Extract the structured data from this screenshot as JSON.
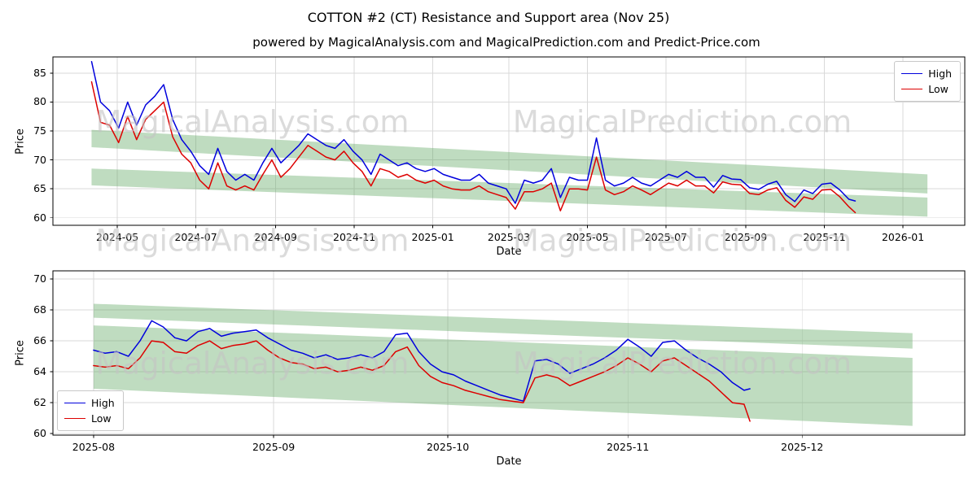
{
  "header": {
    "title": "COTTON #2 (CT) Resistance and Support area (Nov 25)",
    "subtitle": "powered by MagicalAnalysis.com and MagicalPrediction.com and Predict-Price.com"
  },
  "watermarks": {
    "texts": [
      "MagicalAnalysis.com",
      "MagicalPrediction.com"
    ]
  },
  "colors": {
    "high": "#0000dd",
    "low": "#dd0000",
    "band": "#5ea861",
    "grid": "#d9d9d9",
    "spine": "#000000",
    "watermark": "#c4c4c4"
  },
  "chart_data": [
    {
      "type": "line",
      "xlabel": "Date",
      "ylabel": "Price",
      "xlim": [
        "2024-03-12",
        "2026-02-18"
      ],
      "ylim": [
        58.7,
        87.8
      ],
      "x_ticks": [
        "2024-05",
        "2024-07",
        "2024-09",
        "2024-11",
        "2025-01",
        "2025-03",
        "2025-05",
        "2025-07",
        "2025-09",
        "2025-11",
        "2026-01"
      ],
      "y_ticks": [
        60,
        65,
        70,
        75,
        80,
        85
      ],
      "grid": true,
      "legend": {
        "position": "upper right"
      },
      "x": [
        "2024-04-11",
        "2024-04-18",
        "2024-04-25",
        "2024-05-02",
        "2024-05-09",
        "2024-05-16",
        "2024-05-23",
        "2024-05-30",
        "2024-06-06",
        "2024-06-13",
        "2024-06-20",
        "2024-06-27",
        "2024-07-04",
        "2024-07-11",
        "2024-07-18",
        "2024-07-25",
        "2024-08-01",
        "2024-08-08",
        "2024-08-15",
        "2024-08-22",
        "2024-08-29",
        "2024-09-05",
        "2024-09-12",
        "2024-09-19",
        "2024-09-26",
        "2024-10-03",
        "2024-10-10",
        "2024-10-17",
        "2024-10-24",
        "2024-10-31",
        "2024-11-07",
        "2024-11-14",
        "2024-11-21",
        "2024-11-28",
        "2024-12-05",
        "2024-12-12",
        "2024-12-19",
        "2024-12-26",
        "2025-01-02",
        "2025-01-09",
        "2025-01-16",
        "2025-01-23",
        "2025-01-30",
        "2025-02-06",
        "2025-02-13",
        "2025-02-20",
        "2025-02-27",
        "2025-03-06",
        "2025-03-13",
        "2025-03-20",
        "2025-03-27",
        "2025-04-03",
        "2025-04-10",
        "2025-04-17",
        "2025-04-24",
        "2025-05-01",
        "2025-05-08",
        "2025-05-15",
        "2025-05-22",
        "2025-05-29",
        "2025-06-05",
        "2025-06-12",
        "2025-06-19",
        "2025-06-26",
        "2025-07-03",
        "2025-07-10",
        "2025-07-17",
        "2025-07-24",
        "2025-07-31",
        "2025-08-07",
        "2025-08-14",
        "2025-08-21",
        "2025-08-28",
        "2025-09-04",
        "2025-09-11",
        "2025-09-18",
        "2025-09-25",
        "2025-10-02",
        "2025-10-09",
        "2025-10-16",
        "2025-10-23",
        "2025-10-30",
        "2025-11-06",
        "2025-11-13",
        "2025-11-20",
        "2025-11-25"
      ],
      "series": [
        {
          "name": "High",
          "color_key": "high",
          "values": [
            87.0,
            80.0,
            78.5,
            75.5,
            80.0,
            76.0,
            79.5,
            81.0,
            83.0,
            77.0,
            73.5,
            71.5,
            69.0,
            67.5,
            72.0,
            68.0,
            66.5,
            67.5,
            66.5,
            69.5,
            72.0,
            69.5,
            71.0,
            72.5,
            74.5,
            73.5,
            72.5,
            72.0,
            73.5,
            71.5,
            70.0,
            67.5,
            71.0,
            70.0,
            69.0,
            69.5,
            68.5,
            68.0,
            68.5,
            67.5,
            67.0,
            66.5,
            66.5,
            67.5,
            66.0,
            65.5,
            65.0,
            62.5,
            66.5,
            66.0,
            66.5,
            68.5,
            63.5,
            67.0,
            66.5,
            66.5,
            73.8,
            66.5,
            65.5,
            66.0,
            67.0,
            66.0,
            65.5,
            66.5,
            67.5,
            67.0,
            68.0,
            67.0,
            67.0,
            65.3,
            67.3,
            66.7,
            66.6,
            65.2,
            64.9,
            65.8,
            66.3,
            64.0,
            62.8,
            64.8,
            64.2,
            65.8,
            66.0,
            64.8,
            63.2,
            62.9
          ]
        },
        {
          "name": "Low",
          "color_key": "low",
          "values": [
            83.5,
            76.5,
            76.0,
            73.0,
            77.5,
            73.5,
            77.0,
            78.5,
            80.0,
            74.0,
            71.0,
            69.5,
            66.5,
            65.0,
            69.5,
            65.5,
            64.8,
            65.5,
            64.8,
            67.5,
            70.0,
            67.0,
            68.5,
            70.5,
            72.5,
            71.5,
            70.5,
            70.0,
            71.5,
            69.5,
            68.0,
            65.5,
            68.5,
            68.0,
            67.0,
            67.5,
            66.5,
            66.0,
            66.5,
            65.5,
            65.0,
            64.8,
            64.8,
            65.5,
            64.5,
            64.0,
            63.5,
            61.5,
            64.5,
            64.5,
            65.0,
            66.0,
            61.2,
            65.0,
            65.0,
            64.8,
            70.5,
            64.8,
            64.0,
            64.5,
            65.5,
            64.8,
            64.0,
            65.0,
            66.0,
            65.5,
            66.5,
            65.5,
            65.5,
            64.3,
            66.2,
            65.8,
            65.7,
            64.2,
            64.0,
            64.8,
            65.2,
            63.0,
            61.8,
            63.6,
            63.2,
            64.8,
            64.9,
            63.6,
            61.9,
            60.9
          ]
        }
      ],
      "bands": [
        {
          "name": "resistance-area",
          "x": [
            "2024-04-11",
            "2026-01-20"
          ],
          "top": [
            75.2,
            67.5
          ],
          "bottom": [
            72.2,
            64.2
          ]
        },
        {
          "name": "support-area",
          "x": [
            "2024-04-11",
            "2026-01-20"
          ],
          "top": [
            68.5,
            63.5
          ],
          "bottom": [
            65.6,
            60.2
          ]
        }
      ]
    },
    {
      "type": "line",
      "xlabel": "Date",
      "ylabel": "Price",
      "xlim": [
        "2025-07-25",
        "2025-12-29"
      ],
      "ylim": [
        59.9,
        70.53
      ],
      "x_ticks": [
        "2025-08",
        "2025-09",
        "2025-10",
        "2025-11",
        "2025-12"
      ],
      "y_ticks": [
        60,
        62,
        64,
        66,
        68,
        70
      ],
      "grid": true,
      "legend": {
        "position": "lower left"
      },
      "x": [
        "2025-08-01",
        "2025-08-03",
        "2025-08-05",
        "2025-08-07",
        "2025-08-09",
        "2025-08-11",
        "2025-08-13",
        "2025-08-15",
        "2025-08-17",
        "2025-08-19",
        "2025-08-21",
        "2025-08-23",
        "2025-08-25",
        "2025-08-27",
        "2025-08-29",
        "2025-08-31",
        "2025-09-02",
        "2025-09-04",
        "2025-09-06",
        "2025-09-08",
        "2025-09-10",
        "2025-09-12",
        "2025-09-14",
        "2025-09-16",
        "2025-09-18",
        "2025-09-20",
        "2025-09-22",
        "2025-09-24",
        "2025-09-26",
        "2025-09-28",
        "2025-09-30",
        "2025-10-02",
        "2025-10-04",
        "2025-10-06",
        "2025-10-08",
        "2025-10-10",
        "2025-10-12",
        "2025-10-14",
        "2025-10-16",
        "2025-10-18",
        "2025-10-20",
        "2025-10-22",
        "2025-10-24",
        "2025-10-26",
        "2025-10-28",
        "2025-10-30",
        "2025-11-01",
        "2025-11-03",
        "2025-11-05",
        "2025-11-07",
        "2025-11-09",
        "2025-11-11",
        "2025-11-13",
        "2025-11-15",
        "2025-11-17",
        "2025-11-19",
        "2025-11-21",
        "2025-11-22"
      ],
      "series": [
        {
          "name": "High",
          "color_key": "high",
          "values": [
            65.4,
            65.2,
            65.3,
            65.0,
            66.0,
            67.3,
            66.9,
            66.2,
            66.0,
            66.6,
            66.8,
            66.3,
            66.5,
            66.6,
            66.7,
            66.2,
            65.8,
            65.4,
            65.2,
            64.9,
            65.1,
            64.8,
            64.9,
            65.1,
            64.9,
            65.3,
            66.4,
            66.5,
            65.3,
            64.5,
            64.0,
            63.8,
            63.4,
            63.1,
            62.8,
            62.5,
            62.3,
            62.1,
            64.7,
            64.8,
            64.5,
            63.9,
            64.2,
            64.5,
            64.9,
            65.4,
            66.1,
            65.6,
            65.0,
            65.9,
            66.0,
            65.4,
            64.9,
            64.5,
            64.0,
            63.3,
            62.8,
            62.9
          ]
        },
        {
          "name": "Low",
          "color_key": "low",
          "values": [
            64.4,
            64.3,
            64.4,
            64.2,
            64.9,
            66.0,
            65.9,
            65.3,
            65.2,
            65.7,
            66.0,
            65.5,
            65.7,
            65.8,
            66.0,
            65.4,
            64.9,
            64.6,
            64.5,
            64.2,
            64.3,
            64.0,
            64.1,
            64.3,
            64.1,
            64.4,
            65.3,
            65.6,
            64.4,
            63.7,
            63.3,
            63.1,
            62.8,
            62.6,
            62.4,
            62.2,
            62.1,
            62.0,
            63.6,
            63.8,
            63.6,
            63.1,
            63.4,
            63.7,
            64.0,
            64.4,
            64.9,
            64.5,
            64.0,
            64.7,
            64.9,
            64.4,
            63.9,
            63.4,
            62.7,
            62.0,
            61.9,
            60.8
          ]
        }
      ],
      "bands": [
        {
          "name": "resistance-area",
          "x": [
            "2025-08-01",
            "2025-12-20"
          ],
          "top": [
            68.4,
            66.5
          ],
          "bottom": [
            67.5,
            65.5
          ]
        },
        {
          "name": "support-area",
          "x": [
            "2025-08-01",
            "2025-12-20"
          ],
          "top": [
            67.0,
            64.9
          ],
          "bottom": [
            62.9,
            60.5
          ]
        }
      ]
    }
  ]
}
